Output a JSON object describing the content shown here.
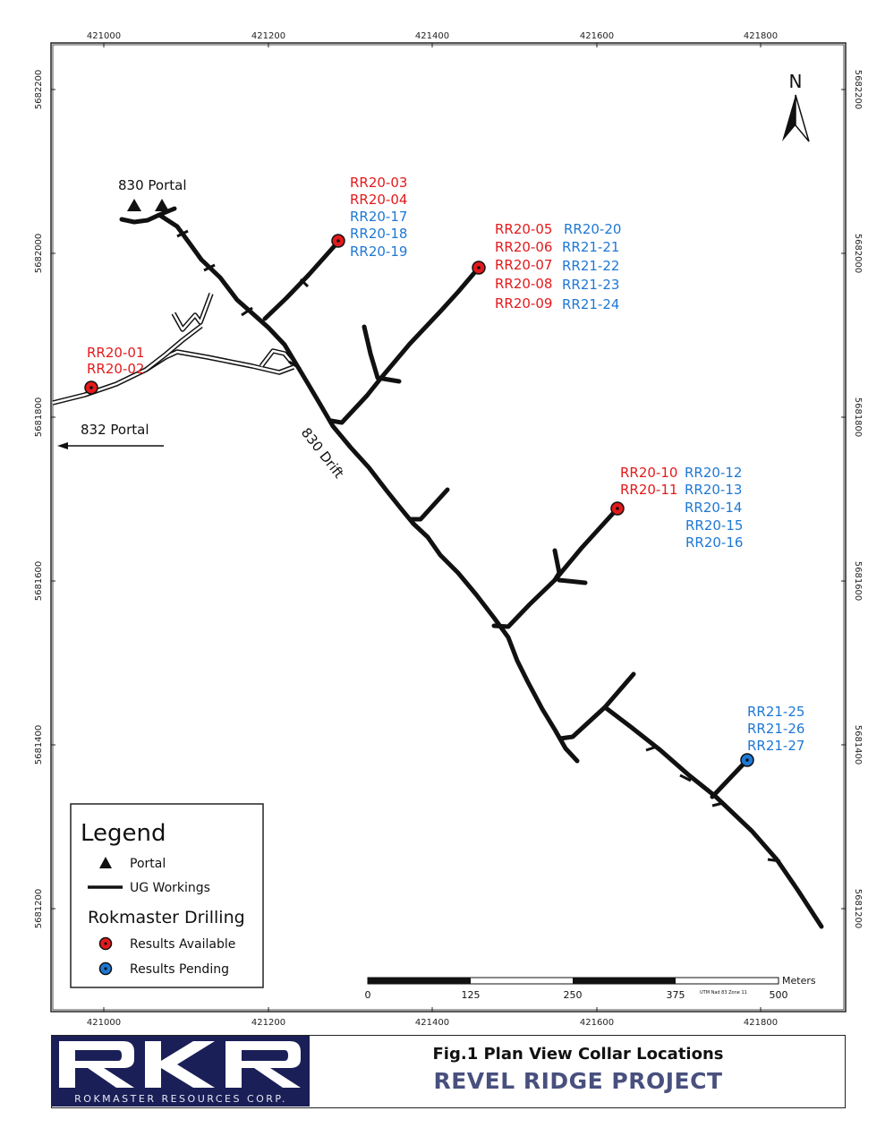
{
  "map": {
    "x_ticks": [
      "421000",
      "421200",
      "421400",
      "421600",
      "421800"
    ],
    "y_ticks": [
      "5682200",
      "5682000",
      "5681800",
      "5681600",
      "5681400",
      "5681200"
    ],
    "north_label": "N"
  },
  "portals": {
    "p830": "830 Portal",
    "p832": "832 Portal"
  },
  "drift_label": "830 Drift",
  "collars": {
    "g1": {
      "status": "available",
      "red": [
        "RR20-01",
        "RR20-02"
      ],
      "blue": []
    },
    "g2": {
      "status": "available",
      "red": [
        "RR20-03",
        "RR20-04"
      ],
      "blue": [
        "RR20-17",
        "RR20-18",
        "RR20-19"
      ]
    },
    "g3": {
      "status": "available",
      "red": [
        "RR20-05",
        "RR20-06",
        "RR20-07",
        "RR20-08",
        "RR20-09"
      ],
      "blue": [
        "RR20-20",
        "RR21-21",
        "RR21-22",
        "RR21-23",
        "RR21-24"
      ]
    },
    "g4": {
      "status": "available",
      "red": [
        "RR20-10",
        "RR20-11"
      ],
      "blue": [
        "RR20-12",
        "RR20-13",
        "RR20-14",
        "RR20-15",
        "RR20-16"
      ]
    },
    "g5": {
      "status": "pending",
      "red": [],
      "blue": [
        "RR21-25",
        "RR21-26",
        "RR21-27"
      ]
    }
  },
  "legend": {
    "title": "Legend",
    "portal": "Portal",
    "workings": "UG Workings",
    "drilling_title": "Rokmaster Drilling",
    "available": "Results Available",
    "pending": "Results Pending"
  },
  "scale_bar": {
    "unit": "Meters",
    "labels": [
      "0",
      "125",
      "250",
      "375",
      "500"
    ],
    "crs": "UTM Nad 83 Zone 11"
  },
  "colors": {
    "available": "#e31a1c",
    "pending": "#1f78d4",
    "logo_bg": "#1a1f57",
    "project_title": "#48507e"
  },
  "title_block": {
    "logo_text": "RKR",
    "company": "ROKMASTER RESOURCES CORP.",
    "figure_title": "Fig.1 Plan View Collar Locations",
    "project": "REVEL RIDGE PROJECT"
  }
}
